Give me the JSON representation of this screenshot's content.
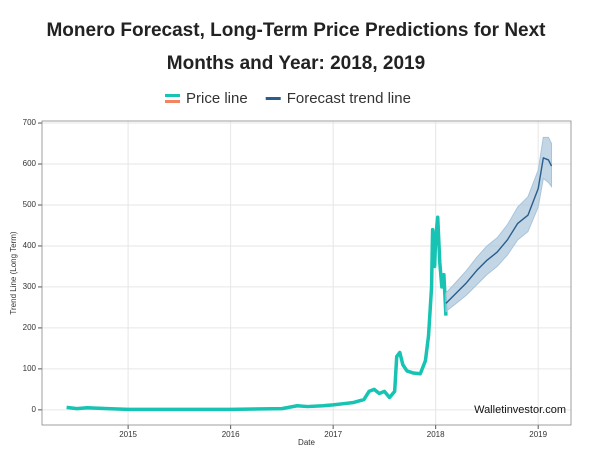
{
  "chart_data": {
    "type": "line",
    "title": "Monero Forecast, Long-Term Price Predictions for Next Months and Year: 2018, 2019",
    "xlabel": "Date",
    "ylabel": "Trend Line (Long Term)",
    "watermark": "Walletinvestor.com",
    "xlim": [
      2014.16,
      2019.32
    ],
    "xticks": [
      2015,
      2016,
      2017,
      2018,
      2019
    ],
    "ylim": [
      -37,
      705
    ],
    "yticks": [
      0,
      100,
      200,
      300,
      400,
      500,
      600,
      700
    ],
    "grid": true,
    "series": [
      {
        "name": "Price line",
        "color": "#17c3b2",
        "legend_accent": "#f4845f",
        "x": [
          2014.4,
          2014.5,
          2014.6,
          2014.8,
          2015.0,
          2015.5,
          2016.0,
          2016.5,
          2016.65,
          2016.75,
          2016.9,
          2017.0,
          2017.1,
          2017.2,
          2017.3,
          2017.35,
          2017.4,
          2017.45,
          2017.5,
          2017.55,
          2017.6,
          2017.62,
          2017.65,
          2017.68,
          2017.72,
          2017.78,
          2017.85,
          2017.9,
          2017.93,
          2017.96,
          2017.97,
          2017.99,
          2018.0,
          2018.02,
          2018.04,
          2018.06,
          2018.08,
          2018.1
        ],
        "values": [
          6,
          3,
          5,
          3,
          1,
          1,
          1,
          3,
          10,
          8,
          10,
          12,
          15,
          18,
          25,
          45,
          50,
          40,
          45,
          30,
          45,
          130,
          140,
          110,
          95,
          90,
          88,
          120,
          180,
          300,
          440,
          350,
          420,
          470,
          360,
          300,
          330,
          230
        ]
      },
      {
        "name": "Forecast trend line",
        "color": "#2a5d8c",
        "band_color": "#a8c4da",
        "x": [
          2018.1,
          2018.2,
          2018.3,
          2018.4,
          2018.5,
          2018.6,
          2018.7,
          2018.8,
          2018.9,
          2019.0,
          2019.05,
          2019.1,
          2019.13
        ],
        "values": [
          260,
          285,
          310,
          340,
          365,
          385,
          415,
          455,
          475,
          540,
          615,
          610,
          595
        ],
        "lower": [
          240,
          260,
          280,
          305,
          330,
          350,
          378,
          415,
          435,
          495,
          565,
          555,
          545
        ],
        "upper": [
          285,
          312,
          340,
          372,
          400,
          420,
          452,
          495,
          520,
          585,
          665,
          665,
          650
        ]
      }
    ]
  }
}
